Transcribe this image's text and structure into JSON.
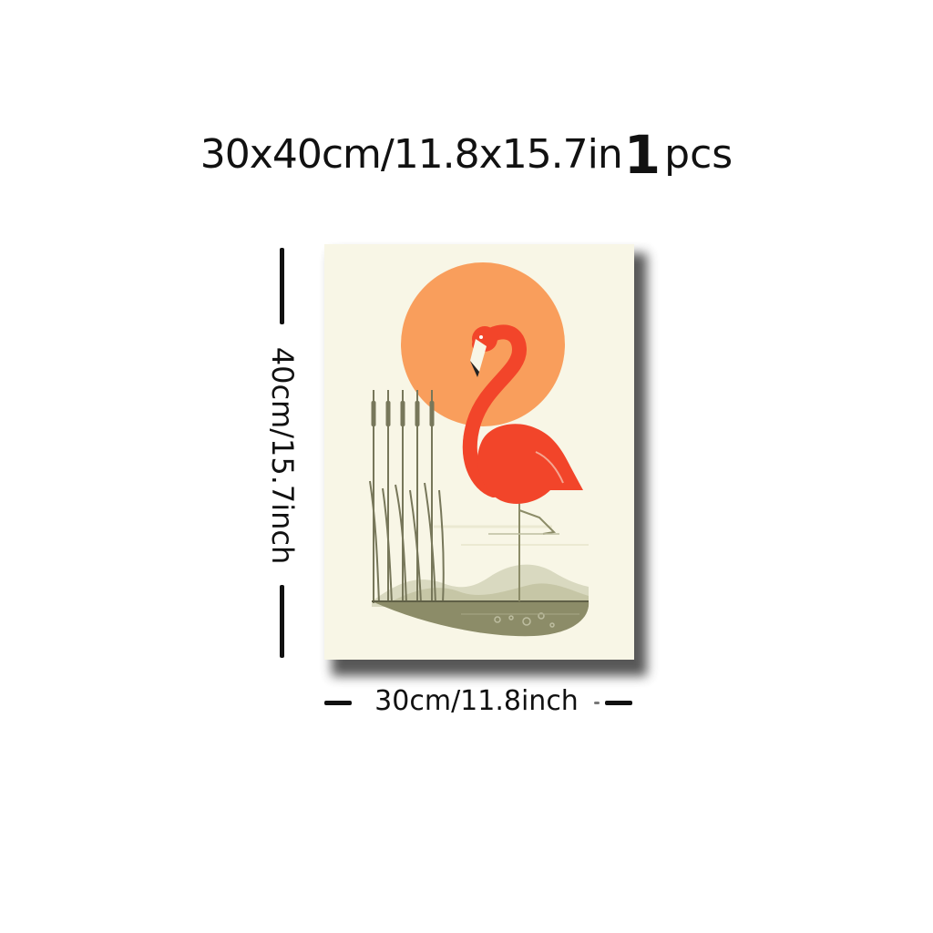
{
  "header": {
    "size_text": "30x40cm/11.8x15.7in",
    "quantity": "1",
    "quantity_unit": "pcs"
  },
  "dimensions": {
    "height_label": "40cm/15.7inch",
    "width_label": "30cm/11.8inch"
  },
  "artwork": {
    "subject": "flamingo with sun and reeds",
    "colors": {
      "background": "#f8f6e6",
      "sun": "#f99e5c",
      "flamingo": "#f2452a",
      "reeds": "#77775a",
      "ground": "#8c8c68"
    }
  }
}
